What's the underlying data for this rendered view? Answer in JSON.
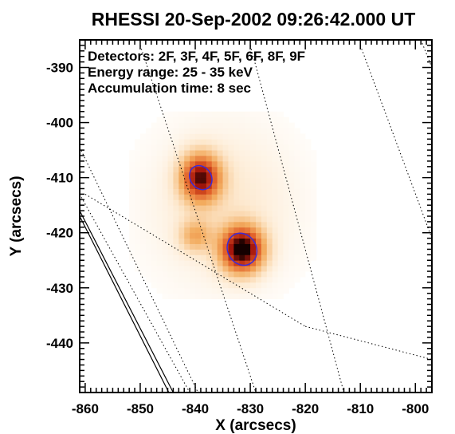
{
  "chart_data": {
    "type": "heatmap",
    "title": "RHESSI 20-Sep-2002 09:26:42.000 UT",
    "xlabel": "X (arcsecs)",
    "ylabel": "Y (arcsecs)",
    "xlim": [
      -861,
      -797
    ],
    "ylim": [
      -449,
      -385
    ],
    "xticks": [
      -860,
      -850,
      -840,
      -830,
      -820,
      -810,
      -800
    ],
    "yticks": [
      -440,
      -430,
      -420,
      -410,
      -400,
      -390
    ],
    "annotations": [
      "Detectors: 2F, 3F, 4F, 5F, 6F, 8F, 9F",
      "Energy range: 25 - 35 keV",
      "Accumulation time: 8 sec"
    ],
    "sources": [
      {
        "x": -839,
        "y": -410,
        "sigma_x": 2.5,
        "sigma_y": 3.0,
        "peak": 0.85
      },
      {
        "x": -831.5,
        "y": -423,
        "sigma_x": 2.7,
        "sigma_y": 2.9,
        "peak": 1.0
      },
      {
        "x": -840,
        "y": -420.5,
        "sigma_x": 2.0,
        "sigma_y": 2.0,
        "peak": 0.32
      },
      {
        "x": -835,
        "y": -415,
        "sigma_x": 9.5,
        "sigma_y": 10.5,
        "peak": 0.14
      }
    ],
    "contours": [
      {
        "cx": -839,
        "cy": -410,
        "rx": 1.9,
        "ry": 2.3,
        "rotate": -35,
        "color": "#3b2bd8"
      },
      {
        "cx": -831.5,
        "cy": -423,
        "rx": 2.6,
        "ry": 3.0,
        "rotate": -30,
        "color": "#3b2bd8"
      }
    ],
    "solid_lines": [
      [
        [
          -861,
          -416
        ],
        [
          -844,
          -449
        ]
      ],
      [
        [
          -861,
          -417
        ],
        [
          -844.8,
          -449
        ]
      ]
    ],
    "dotted_lines": [
      [
        [
          -861,
          -404.5
        ],
        [
          -839.5,
          -449
        ]
      ],
      [
        [
          -861,
          -413
        ],
        [
          -841,
          -449
        ]
      ],
      [
        [
          -860,
          -413
        ],
        [
          -820,
          -437
        ]
      ],
      [
        [
          -820,
          -437
        ],
        [
          -797,
          -443
        ]
      ],
      [
        [
          -850,
          -386
        ],
        [
          -829,
          -449
        ]
      ],
      [
        [
          -830,
          -386
        ],
        [
          -813,
          -449
        ]
      ],
      [
        [
          -810,
          -386
        ],
        [
          -797,
          -421
        ]
      ],
      [
        [
          -799,
          -385
        ],
        [
          -797,
          -390
        ]
      ]
    ]
  }
}
